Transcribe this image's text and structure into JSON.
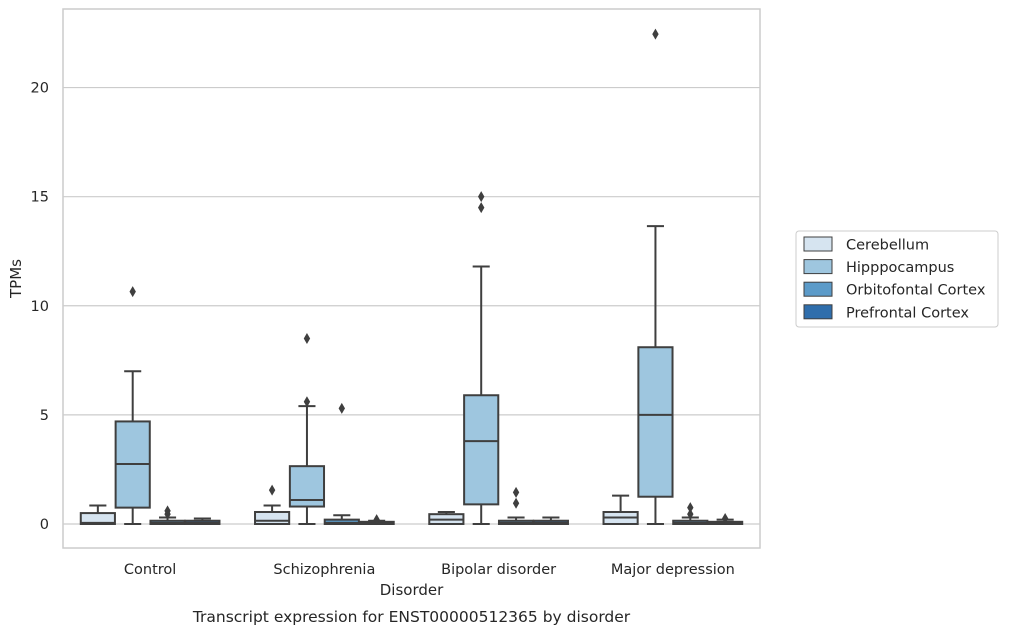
{
  "chart_data": {
    "type": "box",
    "title": "Transcript expression for ENST00000512365 by disorder",
    "xlabel": "Disorder",
    "ylabel": "TPMs",
    "ylim": [
      -1.1,
      23.6
    ],
    "yticks": [
      0,
      5,
      10,
      15,
      20
    ],
    "grid": "horizontal",
    "legend_position": "right",
    "categories": [
      "Control",
      "Schizophrenia",
      "Bipolar disorder",
      "Major depression"
    ],
    "series": [
      {
        "name": "Cerebellum",
        "color": "#d6e4f0",
        "boxes": [
          {
            "whislo": 0.0,
            "q1": 0.0,
            "med": 0.05,
            "q3": 0.5,
            "whishi": 0.85,
            "fliers": []
          },
          {
            "whislo": 0.0,
            "q1": 0.0,
            "med": 0.15,
            "q3": 0.55,
            "whishi": 0.85,
            "fliers": [
              1.55
            ]
          },
          {
            "whislo": 0.0,
            "q1": 0.0,
            "med": 0.2,
            "q3": 0.45,
            "whishi": 0.55,
            "fliers": []
          },
          {
            "whislo": 0.0,
            "q1": 0.0,
            "med": 0.3,
            "q3": 0.55,
            "whishi": 1.3,
            "fliers": []
          }
        ]
      },
      {
        "name": "Hipppocampus",
        "color": "#9ec6df",
        "boxes": [
          {
            "whislo": 0.0,
            "q1": 0.75,
            "med": 2.75,
            "q3": 4.7,
            "whishi": 7.0,
            "fliers": [
              10.65
            ]
          },
          {
            "whislo": 0.0,
            "q1": 0.8,
            "med": 1.1,
            "q3": 2.65,
            "whishi": 5.4,
            "fliers": [
              5.6,
              8.5
            ]
          },
          {
            "whislo": 0.0,
            "q1": 0.9,
            "med": 3.8,
            "q3": 5.9,
            "whishi": 11.8,
            "fliers": [
              14.5,
              15.0
            ]
          },
          {
            "whislo": 0.0,
            "q1": 1.25,
            "med": 5.0,
            "q3": 8.1,
            "whishi": 13.65,
            "fliers": [
              22.45
            ]
          }
        ]
      },
      {
        "name": "Orbitofontal Cortex",
        "color": "#5c9bc9",
        "boxes": [
          {
            "whislo": 0.0,
            "q1": 0.0,
            "med": 0.05,
            "q3": 0.15,
            "whishi": 0.3,
            "fliers": [
              0.45,
              0.6
            ]
          },
          {
            "whislo": 0.0,
            "q1": 0.0,
            "med": 0.05,
            "q3": 0.2,
            "whishi": 0.4,
            "fliers": [
              5.3
            ]
          },
          {
            "whislo": 0.0,
            "q1": 0.0,
            "med": 0.05,
            "q3": 0.15,
            "whishi": 0.3,
            "fliers": [
              0.95,
              1.45
            ]
          },
          {
            "whislo": 0.0,
            "q1": 0.0,
            "med": 0.05,
            "q3": 0.15,
            "whishi": 0.3,
            "fliers": [
              0.45,
              0.75
            ]
          }
        ]
      },
      {
        "name": "Prefrontal Cortex",
        "color": "#2f6eac",
        "boxes": [
          {
            "whislo": 0.0,
            "q1": 0.0,
            "med": 0.05,
            "q3": 0.15,
            "whishi": 0.25,
            "fliers": []
          },
          {
            "whislo": 0.0,
            "q1": 0.0,
            "med": 0.03,
            "q3": 0.1,
            "whishi": 0.15,
            "fliers": [
              0.2
            ]
          },
          {
            "whislo": 0.0,
            "q1": 0.0,
            "med": 0.05,
            "q3": 0.15,
            "whishi": 0.3,
            "fliers": []
          },
          {
            "whislo": 0.0,
            "q1": 0.0,
            "med": 0.05,
            "q3": 0.1,
            "whishi": 0.2,
            "fliers": [
              0.25
            ]
          }
        ]
      }
    ]
  }
}
